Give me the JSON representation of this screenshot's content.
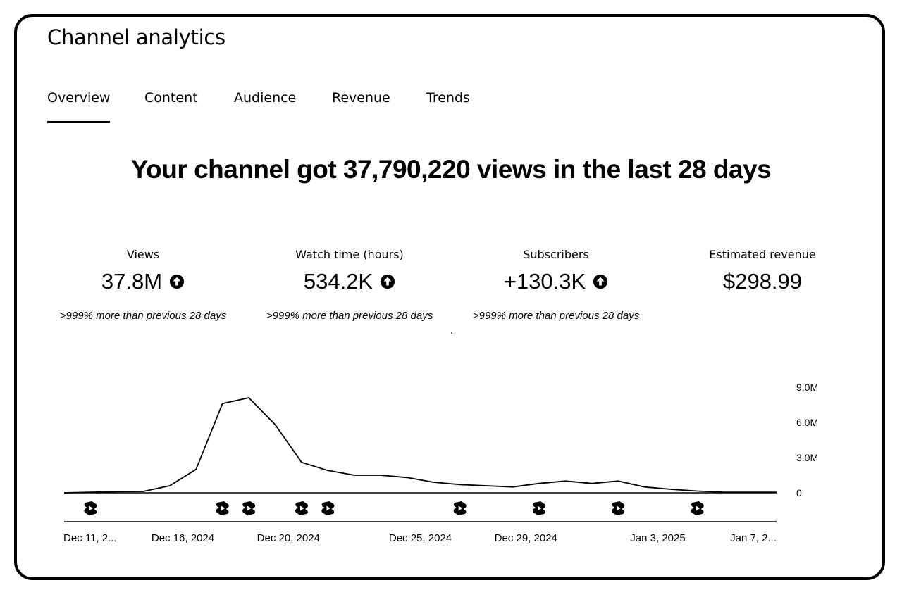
{
  "app": {
    "title": "Channel analytics"
  },
  "tabs": [
    {
      "label": "Overview",
      "active": true
    },
    {
      "label": "Content",
      "active": false
    },
    {
      "label": "Audience",
      "active": false
    },
    {
      "label": "Revenue",
      "active": false
    },
    {
      "label": "Trends",
      "active": false
    }
  ],
  "headline": "Your channel got 37,790,220 views in the last 28 days",
  "metrics": [
    {
      "label": "Views",
      "value": "37.8M",
      "icon": "arrow-up-circle-icon",
      "compare": ">999% more than previous 28 days"
    },
    {
      "label": "Watch time (hours)",
      "value": "534.2K",
      "icon": "arrow-up-circle-icon",
      "compare": ">999% more than previous 28 days"
    },
    {
      "label": "Subscribers",
      "value": "+130.3K",
      "icon": "arrow-up-circle-icon",
      "compare": ">999% more than previous 28 days"
    },
    {
      "label": "Estimated revenue",
      "value": "$298.99"
    }
  ],
  "chart_data": {
    "type": "line",
    "series": [
      {
        "values": [
          0,
          0.05,
          0.1,
          0.12,
          0.6,
          2.0,
          7.6,
          8.1,
          5.8,
          2.6,
          1.9,
          1.5,
          1.5,
          1.3,
          0.9,
          0.7,
          0.6,
          0.5,
          0.8,
          1.0,
          0.8,
          1.0,
          0.5,
          0.3,
          0.15,
          0.05,
          0.05,
          0.05
        ]
      }
    ],
    "y_tick_labels": [
      "9.0M",
      "6.0M",
      "3.0M",
      "0"
    ],
    "y_tick_values": [
      9.0,
      6.0,
      3.0,
      0
    ],
    "ylim": [
      0,
      9.0
    ],
    "x_tick_labels": [
      "Dec 11, 2...",
      "Dec 16, 2024",
      "Dec 20, 2024",
      "Dec 25, 2024",
      "Dec 29, 2024",
      "Jan 3, 2025",
      "Jan 7, 2..."
    ],
    "x_tick_days": [
      0,
      4.5,
      8.5,
      13.5,
      17.5,
      22.5,
      26.5
    ],
    "shorts_marker_days": [
      1,
      6,
      7,
      9,
      10,
      15,
      18,
      21,
      24
    ],
    "shorts_marker_icon": "youtube-shorts-icon",
    "line_color": "#000000",
    "grid": false
  }
}
